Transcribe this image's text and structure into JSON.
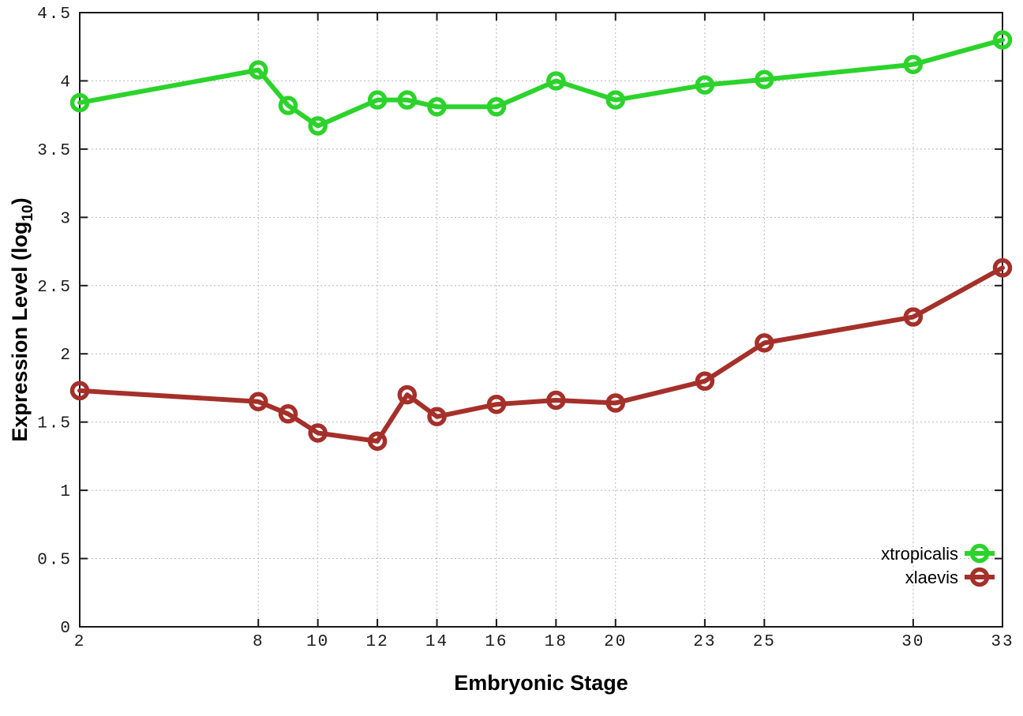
{
  "chart_data": {
    "type": "line",
    "title": "",
    "xlabel": "Embryonic Stage",
    "ylabel": "Expression Level (log10)",
    "ylabel_parts": {
      "pre": "Expression Level (log",
      "sub": "10",
      "post": ")"
    },
    "x": [
      2,
      8,
      9,
      10,
      12,
      13,
      14,
      16,
      18,
      20,
      23,
      25,
      30,
      33
    ],
    "xticks": [
      2,
      8,
      10,
      12,
      14,
      16,
      18,
      20,
      23,
      25,
      30,
      33
    ],
    "yticks": [
      0,
      0.5,
      1,
      1.5,
      2,
      2.5,
      3,
      3.5,
      4,
      4.5
    ],
    "xlim": [
      2,
      33
    ],
    "ylim": [
      0,
      4.5
    ],
    "grid": true,
    "legend_position": "inside-bottom-right",
    "series": [
      {
        "name": "xtropicalis",
        "color": "#2bd32b",
        "marker": "open-circle",
        "values": [
          3.84,
          4.08,
          3.82,
          3.67,
          3.86,
          3.86,
          3.81,
          3.81,
          4.0,
          3.86,
          3.97,
          4.01,
          4.12,
          4.3
        ]
      },
      {
        "name": "xlaevis",
        "color": "#a5302a",
        "marker": "open-circle",
        "values": [
          1.73,
          1.65,
          1.56,
          1.42,
          1.36,
          1.7,
          1.54,
          1.63,
          1.66,
          1.64,
          1.8,
          2.08,
          2.27,
          2.63
        ]
      }
    ],
    "colors": {
      "grid": "#b8b8b8",
      "axis": "#1a1a1a",
      "background": "#ffffff"
    }
  }
}
